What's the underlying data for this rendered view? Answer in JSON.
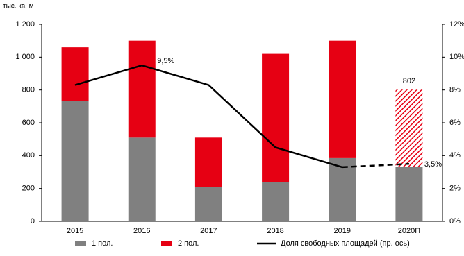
{
  "chart_data": {
    "type": "stacked-bar-line",
    "y_axis_label": "тыс. кв. м",
    "categories": [
      "2015",
      "2016",
      "2017",
      "2018",
      "2019",
      "2020П"
    ],
    "series": [
      {
        "name": "1 пол.",
        "color": "#808080",
        "values": [
          735,
          510,
          210,
          240,
          385,
          330
        ]
      },
      {
        "name": "2 пол.",
        "color": "#e60013",
        "values": [
          325,
          590,
          300,
          780,
          715,
          472
        ]
      },
      {
        "name": "Доля свободных площадей (пр. ось)",
        "color": "#000000",
        "axis": "y2",
        "values": [
          8.3,
          9.5,
          8.3,
          4.5,
          3.3,
          3.5
        ],
        "value_labels": [
          null,
          "9,5%",
          null,
          null,
          null,
          "3,5%"
        ]
      }
    ],
    "totals": [
      null,
      null,
      null,
      null,
      null,
      802
    ],
    "hatch_last": true,
    "dashed_last_segment": true,
    "ylim": [
      0,
      1200
    ],
    "yticks": [
      0,
      200,
      400,
      600,
      800,
      {
        "value": 1000,
        "label": "1 000"
      },
      {
        "value": 1200,
        "label": "1 200"
      }
    ],
    "y2lim": [
      0,
      12
    ],
    "y2ticks": [
      {
        "value": 0,
        "label": "0%"
      },
      {
        "value": 2,
        "label": "2%"
      },
      {
        "value": 4,
        "label": "4%"
      },
      {
        "value": 6,
        "label": "6%"
      },
      {
        "value": 8,
        "label": "8%"
      },
      {
        "value": 10,
        "label": "10%"
      },
      {
        "value": 12,
        "label": "12%"
      }
    ]
  }
}
